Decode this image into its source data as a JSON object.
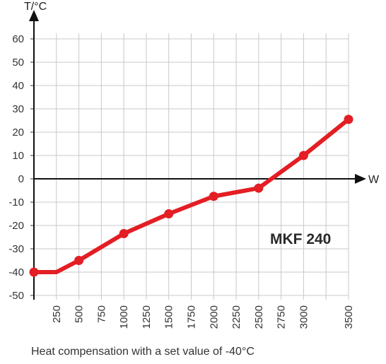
{
  "chart_data": {
    "type": "line",
    "title": "",
    "xlabel": "W",
    "ylabel": "T/°C",
    "ylim": [
      -50,
      60
    ],
    "xlim": [
      0,
      3500
    ],
    "grid": true,
    "yticks": [
      "60",
      "50",
      "40",
      "30",
      "20",
      "10",
      "0",
      "-10",
      "-20",
      "-30",
      "-40",
      "-50"
    ],
    "xticks": [
      "250",
      "500",
      "750",
      "1000",
      "1250",
      "1500",
      "1750",
      "2000",
      "2250",
      "2500",
      "2750",
      "3000",
      "3500"
    ],
    "series": [
      {
        "name": "MKF 240",
        "color": "#e31e24",
        "x": [
          0,
          250,
          500,
          1000,
          1500,
          2000,
          2500,
          3000,
          3500
        ],
        "y": [
          -40,
          -40,
          -35,
          -23.5,
          -15,
          -7.5,
          -4,
          10,
          25.5
        ],
        "markers": [
          true,
          false,
          true,
          true,
          true,
          true,
          true,
          true,
          true
        ]
      }
    ],
    "annotation": "MKF 240"
  },
  "caption": "Heat compensation with a set value of -40°C"
}
